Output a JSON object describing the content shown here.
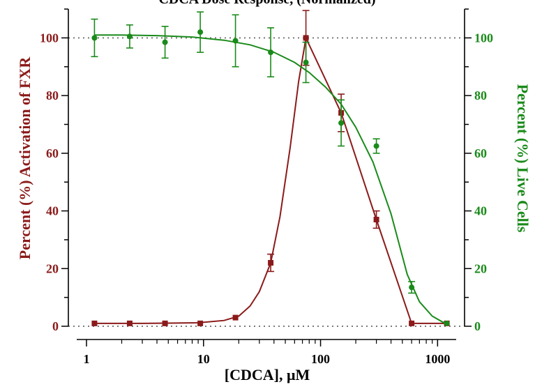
{
  "chart_data": {
    "type": "scatter",
    "title": "CDCA Dose Response, (Normalized)",
    "xlabel": "[CDCA], μM",
    "ylabel_left": "Percent (%) Activation of FXR",
    "ylabel_right": "Percent (%) Live Cells",
    "x_scale": "log",
    "xlim": [
      0.7,
      1700
    ],
    "ylim": [
      0,
      110
    ],
    "x_ticks": [
      1,
      10,
      100,
      1000
    ],
    "x_tick_labels": [
      "1",
      "10",
      "100",
      "1000"
    ],
    "y_ticks": [
      0,
      20,
      40,
      60,
      80,
      100
    ],
    "y_tick_labels": [
      "0",
      "20",
      "40",
      "60",
      "80",
      "100"
    ],
    "reference_lines": [
      0,
      100
    ],
    "grid": false,
    "legend": "none",
    "series": [
      {
        "axis": "left",
        "color": "#8b1a1a",
        "marker": "square",
        "x": [
          1.17,
          2.34,
          4.69,
          9.38,
          18.75,
          37.5,
          75,
          150,
          300,
          600,
          1200
        ],
        "y": [
          1,
          1,
          1,
          1,
          3,
          22,
          100,
          74,
          37,
          1,
          1
        ],
        "error": [
          0,
          0,
          0,
          0,
          0,
          3,
          9.5,
          6.5,
          3,
          0,
          0
        ],
        "fit_x": [
          1.17,
          3,
          9,
          15,
          20,
          25,
          30,
          37.5,
          45,
          55,
          65,
          75,
          150,
          300,
          600,
          1200
        ],
        "fit_y": [
          1,
          1,
          1.2,
          2,
          3.5,
          7,
          12,
          22,
          38,
          62,
          85,
          100,
          74,
          37,
          1,
          1
        ]
      },
      {
        "axis": "right",
        "color": "#1a8a1a",
        "marker": "circle",
        "x": [
          1.17,
          2.34,
          4.69,
          9.38,
          18.75,
          37.5,
          75,
          150,
          300,
          600,
          1200
        ],
        "y": [
          100,
          100.5,
          98.5,
          102,
          99,
          95,
          91.5,
          70.5,
          62.5,
          13.5,
          1
        ],
        "error": [
          6.5,
          4,
          5.5,
          7,
          9,
          8.5,
          7,
          8,
          2.5,
          2,
          0
        ],
        "fit_x": [
          1.17,
          2,
          4,
          8,
          15,
          25,
          40,
          60,
          80,
          110,
          150,
          200,
          280,
          400,
          550,
          700,
          900,
          1100,
          1200
        ],
        "fit_y": [
          101,
          101,
          100.8,
          100.3,
          99.2,
          97.6,
          95,
          91.5,
          88,
          83,
          77,
          69,
          57,
          39,
          18,
          8.5,
          3.5,
          1.5,
          1
        ]
      }
    ]
  }
}
